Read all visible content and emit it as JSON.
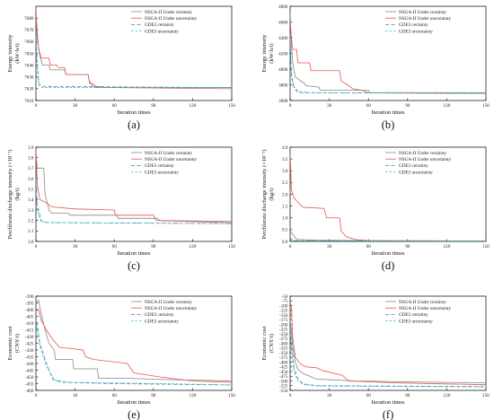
{
  "series_names": [
    "NSGA-II Under certainty",
    "NSGA-II Under uncertainty",
    "GDE3 certainty",
    "GDE3 uncertainty"
  ],
  "colors": {
    "nsga_certain": "#888888",
    "nsga_uncertain": "#e8554e",
    "gde3_certain": "#3a86c8",
    "gde3_uncertain": "#3fc1a8"
  },
  "chart_data": [
    {
      "type": "line",
      "label": "(a)",
      "ylabel": [
        "Energy intensity",
        "(kW·h/t)"
      ],
      "xlabel": "Iteration times",
      "xlim": [
        0,
        150
      ],
      "xticks": [
        0,
        30,
        60,
        90,
        120,
        150
      ],
      "ylim": [
        7610,
        7690
      ],
      "yticks": [
        7610,
        7620,
        7630,
        7640,
        7650,
        7660,
        7670,
        7680
      ],
      "series": [
        {
          "points": [
            [
              0,
              7682
            ],
            [
              1,
              7662
            ],
            [
              3,
              7648
            ],
            [
              5,
              7640
            ],
            [
              10,
              7640
            ],
            [
              11,
              7636
            ],
            [
              22,
              7636
            ],
            [
              23,
              7632
            ],
            [
              40,
              7632
            ],
            [
              41,
              7625
            ],
            [
              45,
              7621
            ],
            [
              50,
              7621
            ],
            [
              150,
              7621
            ]
          ]
        },
        {
          "points": [
            [
              0,
              7688
            ],
            [
              1,
              7668
            ],
            [
              2,
              7655
            ],
            [
              4,
              7646
            ],
            [
              10,
              7646
            ],
            [
              11,
              7640
            ],
            [
              16,
              7640
            ],
            [
              17,
              7638
            ],
            [
              22,
              7638
            ],
            [
              23,
              7632
            ],
            [
              40,
              7632
            ],
            [
              41,
              7626
            ],
            [
              46,
              7622
            ],
            [
              55,
              7621
            ],
            [
              150,
              7620
            ]
          ]
        },
        {
          "points": [
            [
              0,
              7670
            ],
            [
              1,
              7640
            ],
            [
              2,
              7628
            ],
            [
              3,
              7623
            ],
            [
              5,
              7622
            ],
            [
              150,
              7621
            ]
          ]
        },
        {
          "points": [
            [
              0,
              7665
            ],
            [
              1,
              7635
            ],
            [
              2,
              7626
            ],
            [
              3,
              7622
            ],
            [
              5,
              7621
            ],
            [
              150,
              7621
            ]
          ]
        }
      ]
    },
    {
      "type": "line",
      "label": "(b)",
      "ylabel": [
        "Energy intensity",
        "(kW·h/t)"
      ],
      "xlabel": "Iteration times",
      "xlim": [
        0,
        150
      ],
      "xticks": [
        0,
        30,
        60,
        90,
        120,
        150
      ],
      "ylim": [
        3600,
        4800
      ],
      "yticks": [
        3600,
        3800,
        4000,
        4200,
        4400,
        4600,
        4800
      ],
      "series": [
        {
          "points": [
            [
              0,
              4720
            ],
            [
              1,
              4300
            ],
            [
              2,
              4080
            ],
            [
              4,
              3900
            ],
            [
              8,
              3850
            ],
            [
              11,
              3820
            ],
            [
              12,
              3790
            ],
            [
              22,
              3770
            ],
            [
              23,
              3730
            ],
            [
              60,
              3730
            ],
            [
              61,
              3700
            ],
            [
              150,
              3700
            ]
          ]
        },
        {
          "points": [
            [
              0,
              4600
            ],
            [
              1,
              4400
            ],
            [
              2,
              4250
            ],
            [
              5,
              4250
            ],
            [
              6,
              4080
            ],
            [
              15,
              4080
            ],
            [
              16,
              3980
            ],
            [
              38,
              3980
            ],
            [
              39,
              3850
            ],
            [
              44,
              3800
            ],
            [
              48,
              3750
            ],
            [
              55,
              3730
            ],
            [
              60,
              3700
            ],
            [
              150,
              3690
            ]
          ]
        },
        {
          "points": [
            [
              0,
              4400
            ],
            [
              1,
              3900
            ],
            [
              3,
              3760
            ],
            [
              6,
              3700
            ],
            [
              150,
              3690
            ]
          ]
        },
        {
          "points": [
            [
              0,
              4450
            ],
            [
              1,
              3950
            ],
            [
              3,
              3780
            ],
            [
              6,
              3720
            ],
            [
              15,
              3700
            ],
            [
              150,
              3690
            ]
          ]
        }
      ]
    },
    {
      "type": "line",
      "label": "(c)",
      "ylabel": [
        "Perchlorate discharge intensity (×10⁻³)",
        "(kg/t)"
      ],
      "xlabel": "Iteration times",
      "xlim": [
        0,
        150
      ],
      "xticks": [
        0,
        30,
        60,
        90,
        120,
        150
      ],
      "ylim": [
        3.0,
        3.9
      ],
      "yticks": [
        3.0,
        3.1,
        3.2,
        3.3,
        3.4,
        3.5,
        3.6,
        3.7,
        3.8,
        3.9
      ],
      "series": [
        {
          "points": [
            [
              0,
              3.85
            ],
            [
              1,
              3.7
            ],
            [
              6,
              3.7
            ],
            [
              7,
              3.45
            ],
            [
              10,
              3.3
            ],
            [
              12,
              3.27
            ],
            [
              25,
              3.27
            ],
            [
              26,
              3.25
            ],
            [
              62,
              3.25
            ],
            [
              63,
              3.22
            ],
            [
              93,
              3.22
            ],
            [
              95,
              3.2
            ],
            [
              150,
              3.19
            ]
          ]
        },
        {
          "points": [
            [
              0,
              3.88
            ],
            [
              1,
              3.55
            ],
            [
              3,
              3.4
            ],
            [
              8,
              3.37
            ],
            [
              12,
              3.33
            ],
            [
              30,
              3.31
            ],
            [
              60,
              3.3
            ],
            [
              61,
              3.25
            ],
            [
              90,
              3.25
            ],
            [
              92,
              3.2
            ],
            [
              150,
              3.18
            ]
          ]
        },
        {
          "points": [
            [
              0,
              3.6
            ],
            [
              1,
              3.35
            ],
            [
              4,
              3.2
            ],
            [
              8,
              3.18
            ],
            [
              150,
              3.17
            ]
          ]
        },
        {
          "points": [
            [
              0,
              3.55
            ],
            [
              1,
              3.3
            ],
            [
              4,
              3.19
            ],
            [
              10,
              3.18
            ],
            [
              150,
              3.17
            ]
          ]
        }
      ]
    },
    {
      "type": "line",
      "label": "(d)",
      "ylabel": [
        "Perchlorate discharge intensity (×10⁻³)",
        "(kg/t)"
      ],
      "xlabel": "Iteration times",
      "xlim": [
        0,
        150
      ],
      "xticks": [
        0,
        30,
        60,
        90,
        120,
        150
      ],
      "ylim": [
        0,
        4.0
      ],
      "yticks": [
        0.0,
        0.5,
        1.0,
        1.5,
        2.0,
        2.5,
        3.0,
        3.5,
        4.0
      ],
      "series": [
        {
          "points": [
            [
              0,
              0.45
            ],
            [
              2,
              0.3
            ],
            [
              4,
              0.15
            ],
            [
              6,
              0.08
            ],
            [
              20,
              0.05
            ],
            [
              60,
              0.03
            ],
            [
              150,
              0.02
            ]
          ]
        },
        {
          "points": [
            [
              0,
              3.75
            ],
            [
              1,
              2.2
            ],
            [
              3,
              1.85
            ],
            [
              7,
              1.6
            ],
            [
              10,
              1.45
            ],
            [
              26,
              1.4
            ],
            [
              28,
              1.0
            ],
            [
              38,
              1.0
            ],
            [
              39,
              0.45
            ],
            [
              43,
              0.2
            ],
            [
              50,
              0.08
            ],
            [
              60,
              0.03
            ],
            [
              150,
              0.02
            ]
          ]
        },
        {
          "points": [
            [
              0,
              0.15
            ],
            [
              2,
              0.06
            ],
            [
              5,
              0.03
            ],
            [
              150,
              0.02
            ]
          ]
        },
        {
          "points": [
            [
              0,
              0.12
            ],
            [
              2,
              0.05
            ],
            [
              5,
              0.03
            ],
            [
              150,
              0.02
            ]
          ]
        }
      ]
    },
    {
      "type": "line",
      "label": "(e)",
      "ylabel": [
        "Economic cost",
        "(CNY/t)"
      ],
      "xlabel": "Iteration times",
      "xlim": [
        0,
        150
      ],
      "xticks": [
        0,
        30,
        60,
        90,
        120,
        150
      ],
      "ylim": [
        -460,
        -390
      ],
      "yticks": [
        -460,
        -455,
        -450,
        -445,
        -440,
        -435,
        -430,
        -425,
        -420,
        -415,
        -410,
        -405,
        -400,
        -395,
        -390
      ],
      "series": [
        {
          "points": [
            [
              0,
              -396
            ],
            [
              2,
              -393
            ],
            [
              4,
              -403
            ],
            [
              7,
              -415
            ],
            [
              10,
              -425
            ],
            [
              14,
              -430
            ],
            [
              15,
              -437
            ],
            [
              28,
              -437
            ],
            [
              29,
              -444
            ],
            [
              47,
              -444
            ],
            [
              48,
              -451
            ],
            [
              70,
              -451
            ],
            [
              100,
              -452
            ],
            [
              150,
              -453
            ]
          ]
        },
        {
          "points": [
            [
              0,
              -401
            ],
            [
              2,
              -400
            ],
            [
              4,
              -408
            ],
            [
              8,
              -415
            ],
            [
              12,
              -421
            ],
            [
              18,
              -428
            ],
            [
              36,
              -430
            ],
            [
              38,
              -435
            ],
            [
              44,
              -437
            ],
            [
              70,
              -440
            ],
            [
              75,
              -447
            ],
            [
              95,
              -450
            ],
            [
              120,
              -453
            ],
            [
              150,
              -454
            ]
          ]
        },
        {
          "points": [
            [
              0,
              -405
            ],
            [
              3,
              -425
            ],
            [
              8,
              -440
            ],
            [
              13,
              -452
            ],
            [
              20,
              -454
            ],
            [
              60,
              -455
            ],
            [
              150,
              -456
            ]
          ]
        },
        {
          "points": [
            [
              0,
              -407
            ],
            [
              3,
              -427
            ],
            [
              8,
              -442
            ],
            [
              14,
              -452
            ],
            [
              25,
              -454
            ],
            [
              100,
              -455
            ],
            [
              150,
              -456
            ]
          ]
        }
      ]
    },
    {
      "type": "line",
      "label": "(f)",
      "ylabel": [
        "Economic cost",
        "(CNY/t)"
      ],
      "xlabel": "Iteration times",
      "xlim": [
        0,
        150
      ],
      "xticks": [
        0,
        30,
        60,
        90,
        120,
        150
      ],
      "ylim": [
        -550,
        -50
      ],
      "yticks": [
        -550,
        -525,
        -500,
        -475,
        -450,
        -425,
        -400,
        -375,
        -350,
        -325,
        -300,
        -275,
        -250,
        -225,
        -200,
        -175,
        -150,
        -125,
        -100,
        -75,
        -50
      ],
      "series": [
        {
          "points": [
            [
              0,
              -175
            ],
            [
              1,
              -230
            ],
            [
              2,
              -320
            ],
            [
              4,
              -400
            ],
            [
              6,
              -440
            ],
            [
              10,
              -460
            ],
            [
              15,
              -475
            ],
            [
              20,
              -490
            ],
            [
              35,
              -495
            ],
            [
              50,
              -500
            ],
            [
              90,
              -505
            ],
            [
              150,
              -510
            ]
          ]
        },
        {
          "points": [
            [
              0,
              -80
            ],
            [
              1,
              -110
            ],
            [
              2,
              -270
            ],
            [
              4,
              -375
            ],
            [
              8,
              -410
            ],
            [
              12,
              -425
            ],
            [
              20,
              -430
            ],
            [
              25,
              -445
            ],
            [
              40,
              -470
            ],
            [
              45,
              -500
            ],
            [
              80,
              -510
            ],
            [
              150,
              -520
            ]
          ]
        },
        {
          "points": [
            [
              0,
              -200
            ],
            [
              1,
              -300
            ],
            [
              3,
              -430
            ],
            [
              6,
              -490
            ],
            [
              10,
              -515
            ],
            [
              20,
              -525
            ],
            [
              150,
              -530
            ]
          ]
        },
        {
          "points": [
            [
              0,
              -220
            ],
            [
              1,
              -330
            ],
            [
              3,
              -450
            ],
            [
              6,
              -500
            ],
            [
              10,
              -518
            ],
            [
              20,
              -527
            ],
            [
              150,
              -532
            ]
          ]
        }
      ]
    }
  ]
}
